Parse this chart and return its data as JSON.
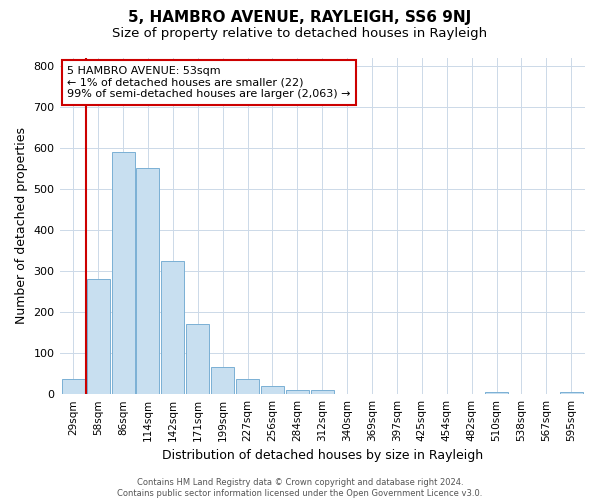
{
  "title": "5, HAMBRO AVENUE, RAYLEIGH, SS6 9NJ",
  "subtitle": "Size of property relative to detached houses in Rayleigh",
  "xlabel": "Distribution of detached houses by size in Rayleigh",
  "ylabel": "Number of detached properties",
  "bar_labels": [
    "29sqm",
    "58sqm",
    "86sqm",
    "114sqm",
    "142sqm",
    "171sqm",
    "199sqm",
    "227sqm",
    "256sqm",
    "284sqm",
    "312sqm",
    "340sqm",
    "369sqm",
    "397sqm",
    "425sqm",
    "454sqm",
    "482sqm",
    "510sqm",
    "538sqm",
    "567sqm",
    "595sqm"
  ],
  "bar_values": [
    38,
    280,
    590,
    550,
    325,
    170,
    65,
    38,
    20,
    10,
    10,
    0,
    0,
    0,
    0,
    0,
    0,
    5,
    0,
    0,
    5
  ],
  "bar_color": "#c8dff0",
  "bar_edge_color": "#7ab0d4",
  "highlight_color": "#cc0000",
  "ylim": [
    0,
    820
  ],
  "yticks": [
    0,
    100,
    200,
    300,
    400,
    500,
    600,
    700,
    800
  ],
  "annotation_title": "5 HAMBRO AVENUE: 53sqm",
  "annotation_line1": "← 1% of detached houses are smaller (22)",
  "annotation_line2": "99% of semi-detached houses are larger (2,063) →",
  "footer_line1": "Contains HM Land Registry data © Crown copyright and database right 2024.",
  "footer_line2": "Contains public sector information licensed under the Open Government Licence v3.0.",
  "bg_color": "#ffffff",
  "grid_color": "#ccd9e8",
  "title_fontsize": 11,
  "subtitle_fontsize": 9.5,
  "axis_label_fontsize": 9,
  "tick_fontsize": 7.5,
  "annotation_fontsize": 8,
  "annotation_box_color": "#ffffff",
  "annotation_box_edge": "#cc0000",
  "footer_fontsize": 6
}
